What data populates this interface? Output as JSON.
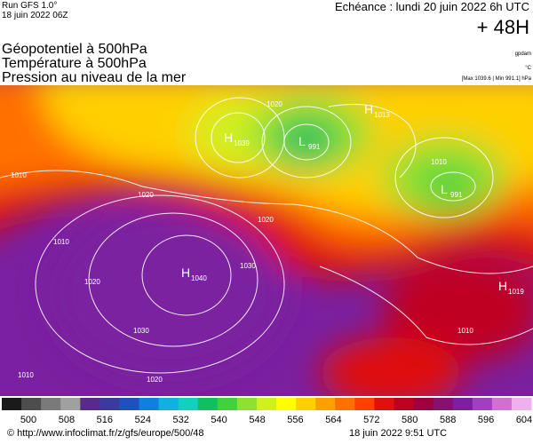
{
  "header": {
    "run": "Run GFS 1.0°",
    "run_date": "18 juin 2022 06Z",
    "echeance": "Echéance : lundi 20 juin 2022 6h UTC",
    "lead": "+ 48H"
  },
  "titles": [
    "Géopotentiel à 500hPa",
    "Température à 500hPa",
    "Pression au niveau de la mer"
  ],
  "units": {
    "geopotential": "gpdam",
    "temperature": "°C",
    "pressure": "[Max 1039.6 | Min 991.1] hPa"
  },
  "centers": [
    {
      "symbol": "H",
      "value": "1039"
    },
    {
      "symbol": "L",
      "value": "991"
    },
    {
      "symbol": "H",
      "value": "1013"
    },
    {
      "symbol": "L",
      "value": "991"
    },
    {
      "symbol": "H",
      "value": "1040"
    },
    {
      "symbol": "H",
      "value": "1019"
    }
  ],
  "isobar_labels": [
    "1010",
    "1020",
    "1030",
    "1020",
    "1010",
    "1020",
    "1030",
    "1020",
    "1010",
    "1020",
    "1010",
    "1010"
  ],
  "legend": {
    "labels": [
      500,
      508,
      516,
      524,
      532,
      540,
      548,
      556,
      564,
      572,
      580,
      588,
      596,
      604
    ],
    "colors": [
      "#1a1a1a",
      "#4d4d4d",
      "#7a7a7a",
      "#a0a0a0",
      "#5a2a8a",
      "#3a3aa0",
      "#2050c0",
      "#1080e0",
      "#10b0e0",
      "#10d0c0",
      "#10c060",
      "#40d040",
      "#90e030",
      "#d0f020",
      "#ffff00",
      "#ffd000",
      "#ffa000",
      "#ff7000",
      "#ff4000",
      "#e01010",
      "#c00020",
      "#a00040",
      "#8a1070",
      "#7a20a0",
      "#a040c0",
      "#d070d0",
      "#f0b0f0"
    ]
  },
  "footer": {
    "url": "© http://www.infoclimat.fr/z/gfs/europe/500/48",
    "date": "18 juin 2022  9:51 UTC"
  }
}
